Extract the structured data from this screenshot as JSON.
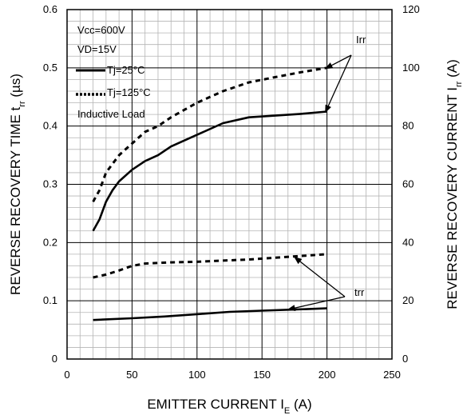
{
  "chart_data": {
    "type": "line",
    "xlabel": "EMITTER CURRENT I",
    "xlabel_sub": "E",
    "xlabel_unit": " (A)",
    "ylabel": "REVERSE RECOVERY TIME t",
    "ylabel_sub": "rr",
    "ylabel_unit": " (µs)",
    "y2label": "REVERSE RECOVERY CURRENT I",
    "y2label_sub": "rr",
    "y2label_unit": " (A)",
    "xlim": [
      0,
      250
    ],
    "ylim": [
      0,
      0.6
    ],
    "y2lim": [
      0,
      120
    ],
    "xticks": [
      "0",
      "50",
      "100",
      "150",
      "200",
      "250"
    ],
    "yticks": [
      "0",
      "0.1",
      "0.2",
      "0.3",
      "0.4",
      "0.5",
      "0.6"
    ],
    "y2ticks": [
      "0",
      "20",
      "40",
      "60",
      "80",
      "100",
      "120"
    ],
    "grid": true,
    "conditions": [
      "Vcc=600V",
      "VD=15V"
    ],
    "legend": [
      {
        "label": "Tj=25°C",
        "style": "solid"
      },
      {
        "label": "Tj=125°C",
        "style": "dotted"
      }
    ],
    "note": "Inductive Load",
    "series": [
      {
        "name": "Irr",
        "label": "Tj=25°C",
        "axis": "right",
        "style": "solid",
        "x": [
          20,
          25,
          30,
          35,
          40,
          50,
          60,
          70,
          80,
          100,
          120,
          140,
          160,
          180,
          200
        ],
        "y": [
          44,
          48,
          54,
          58,
          61,
          65,
          68,
          70,
          73,
          77,
          81,
          83,
          83.6,
          84.2,
          85
        ]
      },
      {
        "name": "Irr",
        "label": "Tj=125°C",
        "axis": "right",
        "style": "dotted",
        "x": [
          20,
          25,
          30,
          40,
          50,
          60,
          70,
          80,
          100,
          120,
          140,
          160,
          180,
          200
        ],
        "y": [
          54,
          58,
          64,
          70,
          74,
          78,
          80,
          83,
          88,
          92,
          95,
          96.8,
          98.5,
          100
        ]
      },
      {
        "name": "trr",
        "label": "Tj=25°C",
        "axis": "left",
        "style": "solid",
        "x": [
          20,
          50,
          75,
          100,
          125,
          150,
          175,
          200
        ],
        "y": [
          0.067,
          0.07,
          0.073,
          0.077,
          0.081,
          0.083,
          0.085,
          0.087
        ]
      },
      {
        "name": "trr",
        "label": "Tj=125°C",
        "axis": "left",
        "style": "dotted",
        "x": [
          20,
          30,
          40,
          50,
          60,
          80,
          100,
          120,
          140,
          160,
          180,
          200
        ],
        "y": [
          0.14,
          0.145,
          0.152,
          0.16,
          0.164,
          0.166,
          0.167,
          0.169,
          0.171,
          0.174,
          0.177,
          0.18
        ]
      }
    ],
    "annotations": [
      {
        "text": "Irr",
        "targets": [
          {
            "x": 200,
            "y_right": 100
          },
          {
            "x": 200,
            "y_right": 85
          }
        ]
      },
      {
        "text": "trr",
        "targets": [
          {
            "x": 175,
            "y": 0.175
          },
          {
            "x": 170,
            "y": 0.085
          }
        ]
      }
    ]
  }
}
